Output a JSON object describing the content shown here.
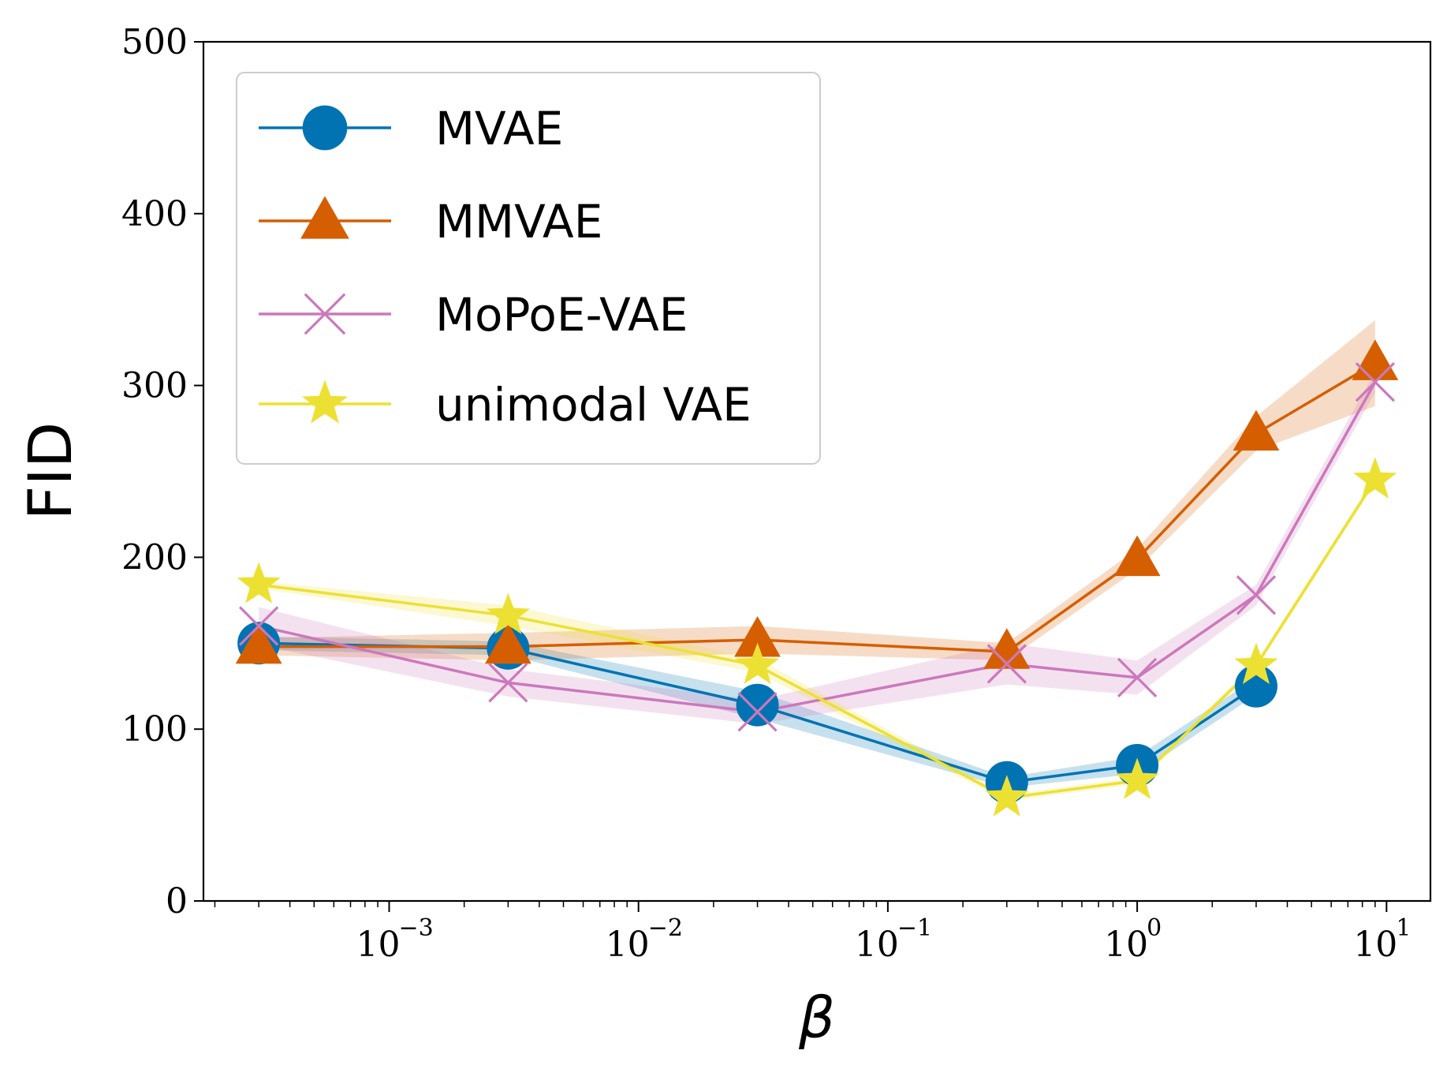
{
  "chart_data": {
    "type": "line",
    "xscale": "log",
    "xlabel": "β",
    "ylabel": "FID",
    "xlim": [
      0.00018,
      15
    ],
    "ylim": [
      0,
      500
    ],
    "yticks": [
      "0",
      "100",
      "200",
      "300",
      "400",
      "500"
    ],
    "xticks": [
      {
        "value": 0.001,
        "base": "10",
        "exp": "−3"
      },
      {
        "value": 0.01,
        "base": "10",
        "exp": "−2"
      },
      {
        "value": 0.1,
        "base": "10",
        "exp": "−1"
      },
      {
        "value": 1,
        "base": "10",
        "exp": "0"
      },
      {
        "value": 10,
        "base": "10",
        "exp": "1"
      }
    ],
    "legend_position": "top-left",
    "series": [
      {
        "name": "MVAE",
        "color": "#0173b2",
        "marker": "circle",
        "x": [
          0.0003,
          0.003,
          0.03,
          0.3,
          1,
          3
        ],
        "y": [
          150,
          147,
          114,
          69,
          79,
          125
        ],
        "band": [
          [
            146,
            154
          ],
          [
            143,
            151
          ],
          [
            106,
            122
          ],
          [
            66,
            72
          ],
          [
            74,
            84
          ],
          [
            120,
            130
          ]
        ]
      },
      {
        "name": "MMVAE",
        "color": "#d55e00",
        "marker": "triangle",
        "x": [
          0.0003,
          0.003,
          0.03,
          0.3,
          1,
          3,
          9
        ],
        "y": [
          148,
          148,
          152,
          145,
          199,
          272,
          313
        ],
        "band": [
          [
            143,
            153
          ],
          [
            140,
            156
          ],
          [
            144,
            160
          ],
          [
            140,
            150
          ],
          [
            193,
            205
          ],
          [
            262,
            282
          ],
          [
            288,
            338
          ]
        ]
      },
      {
        "name": "MoPoE-VAE",
        "color": "#cc78bc",
        "marker": "x",
        "x": [
          0.0003,
          0.003,
          0.03,
          0.3,
          1,
          3,
          9
        ],
        "y": [
          160,
          127,
          110,
          138,
          130,
          178,
          302
        ],
        "band": [
          [
            149,
            171
          ],
          [
            119,
            135
          ],
          [
            103,
            117
          ],
          [
            126,
            150
          ],
          [
            120,
            140
          ],
          [
            172,
            184
          ],
          [
            296,
            308
          ]
        ]
      },
      {
        "name": "unimodal VAE",
        "color": "#ece133",
        "marker": "star",
        "x": [
          0.0003,
          0.003,
          0.03,
          0.3,
          1,
          3,
          9
        ],
        "y": [
          184,
          166,
          137,
          60,
          70,
          137,
          245
        ],
        "band": [
          [
            182,
            186
          ],
          [
            160,
            172
          ],
          [
            133,
            141
          ],
          [
            58,
            62
          ],
          [
            68,
            72
          ],
          [
            135,
            139
          ],
          [
            243,
            247
          ]
        ]
      }
    ]
  }
}
